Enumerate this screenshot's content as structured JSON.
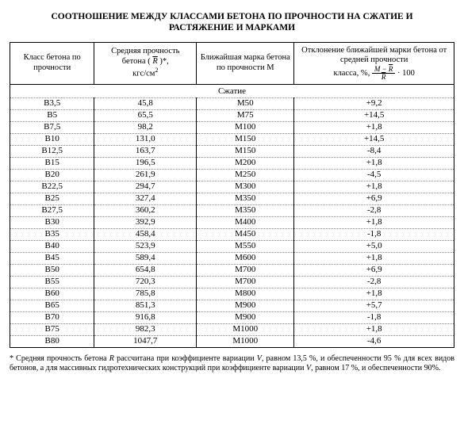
{
  "title_line1": "СООТНОШЕНИЕ МЕЖДУ КЛАССАМИ БЕТОНА ПО ПРОЧНОСТИ НА СЖАТИЕ И",
  "title_line2": "РАСТЯЖЕНИЕ И МАРКАМИ",
  "headers": {
    "col1": "Класс бетона по прочности",
    "col2_l1": "Средняя прочность",
    "col2_l2_a": "бетона ( ",
    "col2_l2_b": " )*,",
    "col2_l3": "кгс/см",
    "col2_sup": "2",
    "col3": "Ближайшая марка бетона по прочности М",
    "col4_l1": "Отклонение ближайшей марки бетона от средней прочности",
    "col4_l2": "класса, %, ",
    "col4_num_a": "M − ",
    "col4_num_b": "R",
    "col4_den": "R",
    "col4_mult": " · 100"
  },
  "section_label": "Сжатие",
  "columns": [
    "class",
    "strength",
    "mark",
    "deviation"
  ],
  "rows": [
    [
      "В3,5",
      "45,8",
      "М50",
      "+9,2"
    ],
    [
      "В5",
      "65,5",
      "М75",
      "+14,5"
    ],
    [
      "В7,5",
      "98,2",
      "М100",
      "+1,8"
    ],
    [
      "В10",
      "131,0",
      "М150",
      "+14,5"
    ],
    [
      "В12,5",
      "163,7",
      "М150",
      "-8,4"
    ],
    [
      "В15",
      "196,5",
      "М200",
      "+1,8"
    ],
    [
      "В20",
      "261,9",
      "М250",
      "-4,5"
    ],
    [
      "В22,5",
      "294,7",
      "М300",
      "+1,8"
    ],
    [
      "В25",
      "327,4",
      "М350",
      "+6,9"
    ],
    [
      "В27,5",
      "360,2",
      "М350",
      "-2,8"
    ],
    [
      "В30",
      "392,9",
      "М400",
      "+1,8"
    ],
    [
      "В35",
      "458,4",
      "М450",
      "-1,8"
    ],
    [
      "В40",
      "523,9",
      "М550",
      "+5,0"
    ],
    [
      "В45",
      "589,4",
      "М600",
      "+1,8"
    ],
    [
      "В50",
      "654,8",
      "М700",
      "+6,9"
    ],
    [
      "В55",
      "720,3",
      "М700",
      "-2,8"
    ],
    [
      "В60",
      "785,8",
      "М800",
      "+1,8"
    ],
    [
      "В65",
      "851,3",
      "М900",
      "+5,7"
    ],
    [
      "В70",
      "916,8",
      "М900",
      "-1,8"
    ],
    [
      "В75",
      "982,3",
      "М1000",
      "+1,8"
    ],
    [
      "В80",
      "1047,7",
      "М1000",
      "-4,6"
    ]
  ],
  "footnote_a": "* Средняя прочность бетона ",
  "footnote_R": "R",
  "footnote_b": " рассчитана при коэффициенте вариации ",
  "footnote_V": "V",
  "footnote_c": ", равном 13,5 %, и обеспеченности  95 % для всех видов бетонов, а для массивных гидротехнических конструкций при коэффициенте вариации ",
  "footnote_d": ", равном 17 %, и обеспеченности  90%.",
  "Rbar": "R"
}
